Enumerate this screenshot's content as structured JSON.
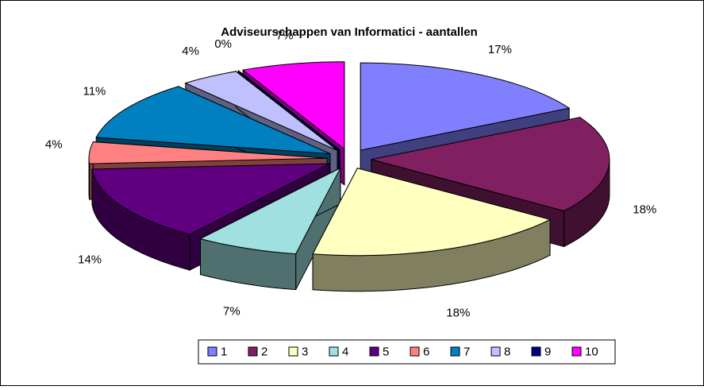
{
  "chart_data": {
    "type": "pie",
    "title": "Adviseurschappen van Informatici - aantallen",
    "categories": [
      "1",
      "2",
      "3",
      "4",
      "5",
      "6",
      "7",
      "8",
      "9",
      "10"
    ],
    "values": [
      17,
      18,
      18,
      7,
      14,
      4,
      11,
      4,
      0,
      7
    ],
    "value_labels": [
      "17%",
      "18%",
      "18%",
      "7%",
      "14%",
      "4%",
      "11%",
      "4%",
      "0%",
      "7%"
    ],
    "colors": [
      "#8080ff",
      "#802060",
      "#ffffc0",
      "#a0e0e0",
      "#600080",
      "#ff8080",
      "#0080c0",
      "#c0c0ff",
      "#000080",
      "#ff00ff"
    ],
    "legend": "bottom"
  }
}
